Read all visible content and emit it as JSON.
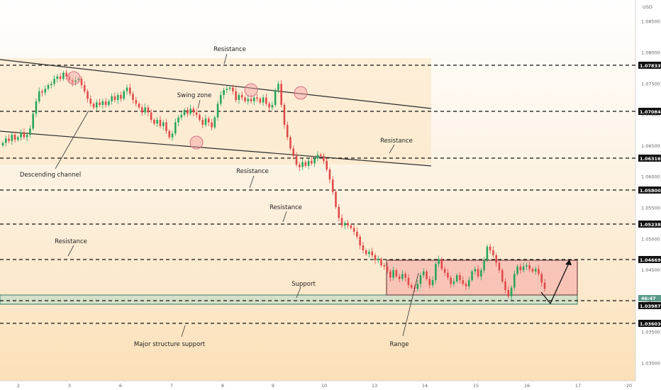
{
  "chart_data": {
    "type": "candlestick",
    "currency": "USD",
    "x_ticks": [
      "2",
      "3",
      "6",
      "7",
      "8",
      "9",
      "10",
      "13",
      "14",
      "15",
      "16",
      "17",
      "20"
    ],
    "y_ticks": [
      "1.08500",
      "1.08000",
      "1.07500",
      "1.07000",
      "1.06500",
      "1.06000",
      "1.05500",
      "1.05000",
      "1.04500",
      "1.04000",
      "1.03500",
      "1.03000"
    ],
    "level_badges": [
      "1.07833",
      "1.07084",
      "1.06316",
      "1.05800",
      "1.05238",
      "1.04669",
      "1.03987",
      "1.03603"
    ],
    "current_price_badge": "46:47",
    "annotations": [
      "Resistance",
      "Swing  zone",
      "Descending channel",
      "Resistance",
      "Resistance",
      "Resistance",
      "Resistance",
      "Support",
      "Major structure support",
      "Range"
    ],
    "closes": [
      1.0655,
      1.0662,
      1.0658,
      1.0668,
      1.066,
      1.0664,
      1.0672,
      1.0664,
      1.0668,
      1.0678,
      1.0702,
      1.0722,
      1.0738,
      1.0736,
      1.0742,
      1.0748,
      1.075,
      1.0758,
      1.0762,
      1.0758,
      1.0768,
      1.0762,
      1.0756,
      1.0752,
      1.0756,
      1.0758,
      1.0748,
      1.0738,
      1.0726,
      1.0718,
      1.0712,
      1.072,
      1.0716,
      1.0722,
      1.0716,
      1.0722,
      1.073,
      1.0724,
      1.0732,
      1.0726,
      1.0738,
      1.0744,
      1.0734,
      1.0724,
      1.0718,
      1.0712,
      1.0704,
      1.0712,
      1.0704,
      1.0692,
      1.0686,
      1.0692,
      1.0682,
      1.0688,
      1.0674,
      1.0664,
      1.067,
      1.0688,
      1.0696,
      1.07,
      1.0708,
      1.0702,
      1.071,
      1.0704,
      1.07,
      1.0692,
      1.0684,
      1.0694,
      1.0688,
      1.068,
      1.0696,
      1.0718,
      1.0732,
      1.074,
      1.0742,
      1.0744,
      1.0738,
      1.0724,
      1.0732,
      1.0728,
      1.0722,
      1.0726,
      1.0722,
      1.0728,
      1.0726,
      1.072,
      1.0728,
      1.0718,
      1.0712,
      1.0716,
      1.074,
      1.075,
      1.0716,
      1.0684,
      1.0664,
      1.0646,
      1.0634,
      1.062,
      1.0616,
      1.0624,
      1.0618,
      1.0626,
      1.0622,
      1.063,
      1.0636,
      1.0634,
      1.0626,
      1.0612,
      1.0596,
      1.0576,
      1.0552,
      1.0534,
      1.0522,
      1.0526,
      1.0522,
      1.0518,
      1.0512,
      1.0504,
      1.049,
      1.0482,
      1.0476,
      1.048,
      1.0474,
      1.0466,
      1.0468,
      1.0458,
      1.0456,
      1.0448,
      1.0438,
      1.045,
      1.044,
      1.0436,
      1.0444,
      1.0438,
      1.0426,
      1.0422,
      1.042,
      1.0428,
      1.0442,
      1.0448,
      1.0436,
      1.0426,
      1.0434,
      1.046,
      1.0468,
      1.0452,
      1.0446,
      1.0438,
      1.0428,
      1.0432,
      1.0442,
      1.0434,
      1.0428,
      1.0424,
      1.0434,
      1.0448,
      1.0452,
      1.044,
      1.045,
      1.0466,
      1.0488,
      1.0482,
      1.0474,
      1.0462,
      1.045,
      1.0432,
      1.0418,
      1.0408,
      1.0422,
      1.0444,
      1.0456,
      1.045,
      1.0456,
      1.0458,
      1.0452,
      1.0448,
      1.0452,
      1.0444,
      1.043,
      1.042
    ],
    "ylim": [
      1.0272,
      1.0885
    ],
    "date_range": [
      "2",
      "17"
    ]
  }
}
